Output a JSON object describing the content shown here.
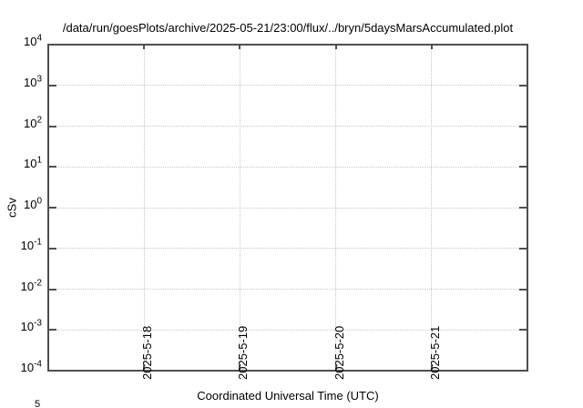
{
  "chart_data": {
    "type": "line",
    "title": "/data/run/goesPlots/archive/2025-05-21/23:00/flux/../bryn/5daysMarsAccumulated.plot",
    "xlabel": "Coordinated Universal Time (UTC)",
    "ylabel": "cSv",
    "y_axis": {
      "scale": "log",
      "base_label": "10",
      "tick_exponents": [
        4,
        3,
        2,
        1,
        0,
        -1,
        -2,
        -3,
        -4
      ],
      "range": [
        "1e-4",
        "1e4"
      ]
    },
    "x_axis": {
      "tick_labels": [
        "2025-5-18",
        "2025-5-19",
        "2025-5-20",
        "2025-5-21"
      ],
      "span_days": 5
    },
    "grid": "dotted",
    "series": [],
    "clipped_label_fragment": "5",
    "colors": {
      "background": "#ffffff",
      "border": "#4f4f4f",
      "grid": "#c6c6c6",
      "text": "#000000"
    }
  }
}
